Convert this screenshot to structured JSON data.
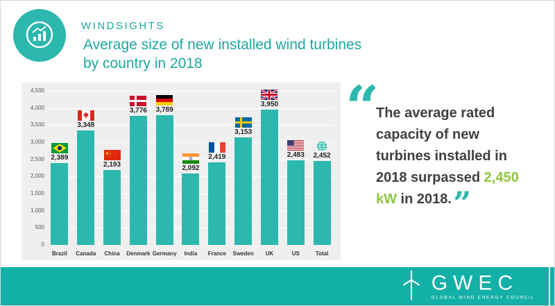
{
  "header": {
    "brand": "WINDSIGHTS",
    "title_line1": "Average size of new installed wind turbines",
    "title_line2": "by country in 2018"
  },
  "chart_data": {
    "type": "bar",
    "title": "Average size of new installed wind turbines by country in 2018",
    "categories": [
      "Brazil",
      "Canada",
      "China",
      "Denmark",
      "Germany",
      "India",
      "France",
      "Sweden",
      "UK",
      "US",
      "Total"
    ],
    "values": [
      2389,
      3348,
      2193,
      3776,
      3789,
      2092,
      2419,
      3153,
      3950,
      2483,
      2452
    ],
    "value_labels": [
      "2,389",
      "3,348",
      "2,193",
      "3,776",
      "3,789",
      "2,092",
      "2,419",
      "3,153",
      "3,950",
      "2,483",
      "2,452"
    ],
    "flags": [
      "brazil",
      "canada",
      "china",
      "denmark",
      "germany",
      "india",
      "france",
      "sweden",
      "uk",
      "us",
      "globe"
    ],
    "xlabel": "",
    "ylabel": "",
    "ylim": [
      0,
      4500
    ],
    "ytick_step": 500,
    "ytick_labels": [
      "0",
      "500",
      "1,000",
      "1,500",
      "2,000",
      "2,500",
      "3,000",
      "3,500",
      "4,000",
      "4,500"
    ],
    "grid": true,
    "bar_color": "#2cb8ae",
    "legend": "none",
    "unit": "kW"
  },
  "quote": {
    "open_mark": "“",
    "close_mark": "”",
    "text_before": "The average rated capacity of new turbines installed in 2018 surpassed ",
    "highlight": "2,450 kW",
    "text_after": " in 2018.",
    "highlight_color": "#8dc63f"
  },
  "footer": {
    "logo_text": "GWEC",
    "logo_subtext": "GLOBAL WIND ENERGY COUNCIL"
  },
  "colors": {
    "teal_title": "#1ba89f",
    "bar_teal": "#2cb8ae",
    "footer_bg": "#12b0a6",
    "panel_bg": "#efefef",
    "green_highlight": "#8dc63f"
  }
}
